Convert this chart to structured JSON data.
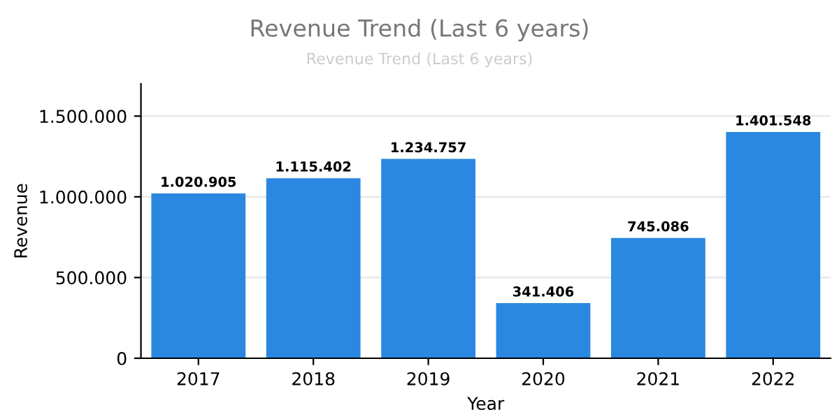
{
  "chart_data": {
    "type": "bar",
    "title": "Revenue Trend (Last 6 years)",
    "subtitle": "Revenue Trend (Last 6 years)",
    "xlabel": "Year",
    "ylabel": "Revenue",
    "categories": [
      "2017",
      "2018",
      "2019",
      "2020",
      "2021",
      "2022"
    ],
    "values": [
      1020905,
      1115402,
      1234757,
      341406,
      745086,
      1401548
    ],
    "value_labels": [
      "1.020.905",
      "1.115.402",
      "1.234.757",
      "341.406",
      "745.086",
      "1.401.548"
    ],
    "color": "#2a88e0",
    "ylim": [
      0,
      1700000
    ],
    "yticks": [
      0,
      {
        "value": 500000,
        "label": "500.000"
      },
      {
        "value": 1000000,
        "label": "1.000.000"
      },
      {
        "value": 1500000,
        "label": "1.500.000"
      }
    ],
    "grid": "y"
  }
}
